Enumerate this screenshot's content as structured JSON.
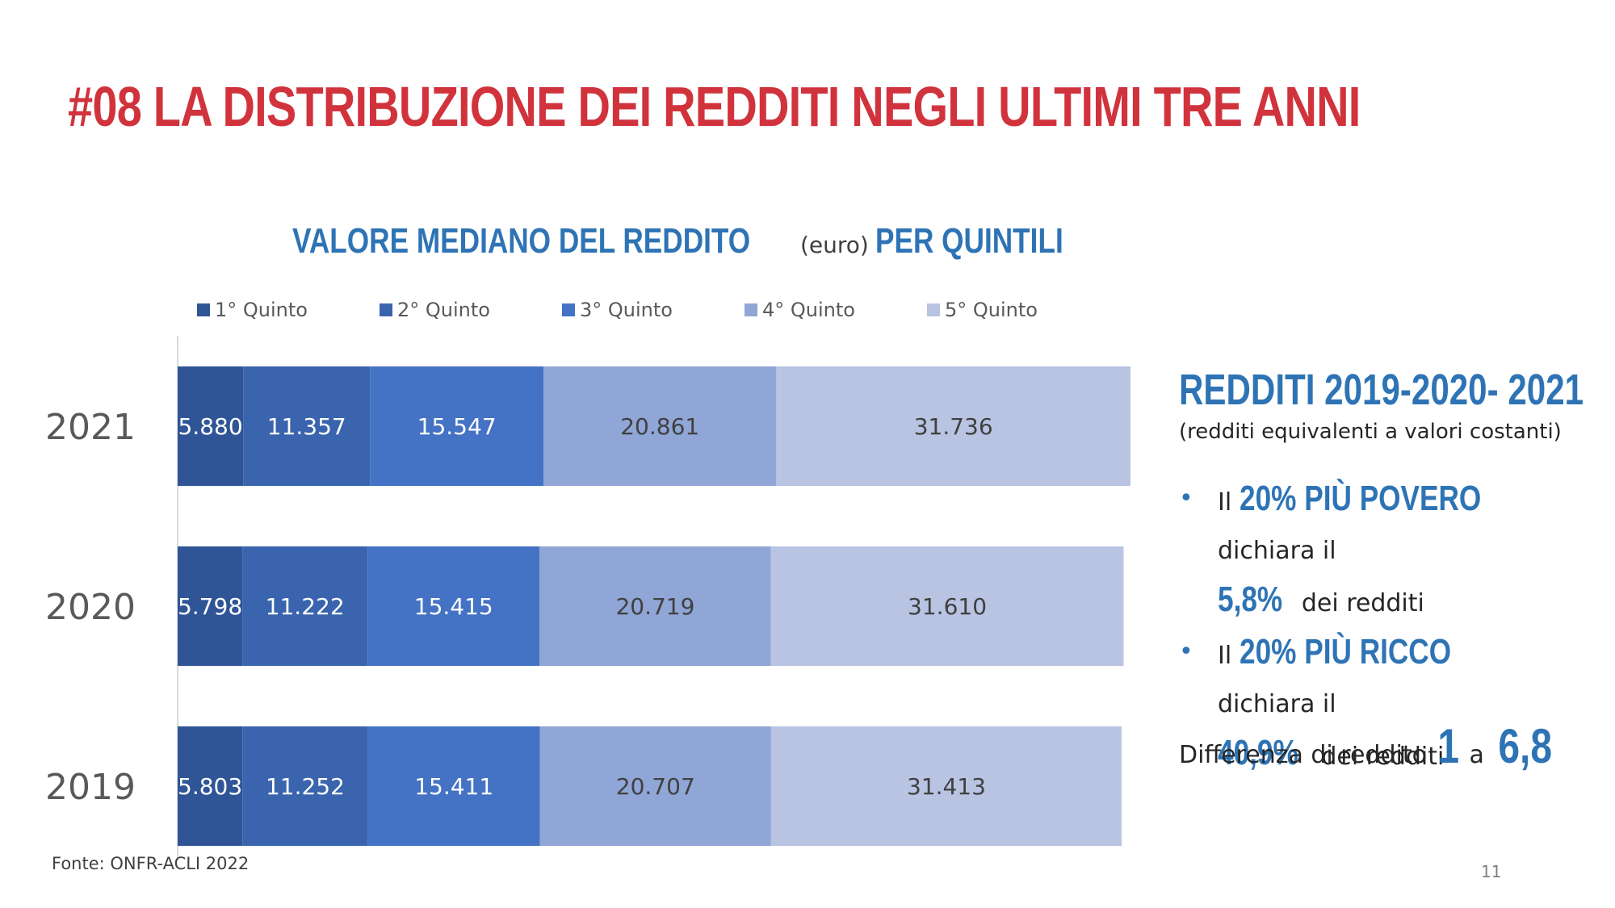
{
  "title": "#08 LA DISTRIBUZIONE DEI REDDITI NEGLI ULTIMI TRE ANNI",
  "chart_title": {
    "bold1": "VALORE MEDIANO DEL REDDITO",
    "normal": "(euro)",
    "bold2": "PER QUINTILI"
  },
  "chart_data": {
    "type": "bar",
    "orientation": "horizontal",
    "stacked": true,
    "categories": [
      "2021",
      "2020",
      "2019"
    ],
    "series": [
      {
        "name": "1° Quinto",
        "values": [
          5880,
          5798,
          5803
        ],
        "labels": [
          "5.880",
          "5.798",
          "5.803"
        ],
        "color": "#2f5597"
      },
      {
        "name": "2° Quinto",
        "values": [
          11357,
          11222,
          11252
        ],
        "labels": [
          "11.357",
          "11.222",
          "11.252"
        ],
        "color": "#3a64ad"
      },
      {
        "name": "3° Quinto",
        "values": [
          15547,
          15415,
          15411
        ],
        "labels": [
          "15.547",
          "15.415",
          "15.411"
        ],
        "color": "#4472c4"
      },
      {
        "name": "4° Quinto",
        "values": [
          20861,
          20719,
          20707
        ],
        "labels": [
          "20.861",
          "20.719",
          "20.707"
        ],
        "color": "#8fa6d6"
      },
      {
        "name": "5° Quinto",
        "values": [
          31736,
          31610,
          31413
        ],
        "labels": [
          "31.736",
          "31.610",
          "31.413"
        ],
        "color": "#b9c4e3"
      }
    ],
    "legend_position": "top",
    "grid": false
  },
  "side": {
    "title": "REDDITI 2019-2020- 2021",
    "subtitle": "(redditi equivalenti a valori costanti)",
    "bullet_char": "•",
    "b1": {
      "pre": "Il",
      "hl1": "20% PIÙ POVERO",
      "mid": "dichiara il",
      "hl2": "5,8%",
      "post": "dei redditi"
    },
    "b2": {
      "pre": "Il",
      "hl1": "20% PIÙ RICCO",
      "mid": "dichiara il",
      "hl2": "40,9%",
      "post": "dei redditi"
    },
    "diff": {
      "text": "Differenza di reddito",
      "n1": "1",
      "a": "a",
      "n2": "6,8"
    }
  },
  "source": "Fonte: ONFR-ACLI 2022",
  "page_number": "11"
}
